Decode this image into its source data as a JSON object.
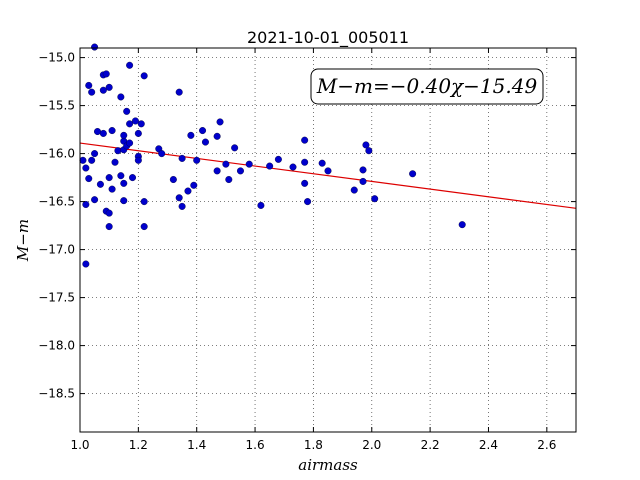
{
  "chart_data": {
    "type": "scatter",
    "title": "2021-10-01_005011",
    "xlabel": "airmass",
    "ylabel": "M−m",
    "xlim": [
      1.0,
      2.7
    ],
    "ylim": [
      -18.9,
      -14.9
    ],
    "xticks": [
      "1.0",
      "1.2",
      "1.4",
      "1.6",
      "1.8",
      "2.0",
      "2.2",
      "2.4",
      "2.6"
    ],
    "xtick_values": [
      1.0,
      1.2,
      1.4,
      1.6,
      1.8,
      2.0,
      2.2,
      2.4,
      2.6
    ],
    "yticks": [
      "−15.0",
      "−15.5",
      "−16.0",
      "−16.5",
      "−17.0",
      "−17.5",
      "−18.0",
      "−18.5"
    ],
    "ytick_values": [
      -15.0,
      -15.5,
      -16.0,
      -16.5,
      -17.0,
      -17.5,
      -18.0,
      -18.5
    ],
    "grid": true,
    "annotation": "M−m=−0.40χ−15.49",
    "point_color": "#0000cc",
    "fit_color": "#dd0000",
    "fit": {
      "slope": -0.4,
      "intercept": -15.49,
      "x_range": [
        1.0,
        2.7
      ]
    },
    "points": [
      [
        1.01,
        -16.07
      ],
      [
        1.02,
        -16.53
      ],
      [
        1.02,
        -16.15
      ],
      [
        1.02,
        -17.15
      ],
      [
        1.03,
        -16.26
      ],
      [
        1.03,
        -15.29
      ],
      [
        1.04,
        -15.36
      ],
      [
        1.04,
        -16.07
      ],
      [
        1.05,
        -14.89
      ],
      [
        1.05,
        -16.48
      ],
      [
        1.05,
        -16.0
      ],
      [
        1.06,
        -15.77
      ],
      [
        1.07,
        -16.32
      ],
      [
        1.08,
        -15.79
      ],
      [
        1.08,
        -15.34
      ],
      [
        1.08,
        -15.18
      ],
      [
        1.09,
        -15.17
      ],
      [
        1.1,
        -15.31
      ],
      [
        1.09,
        -16.6
      ],
      [
        1.1,
        -16.62
      ],
      [
        1.1,
        -16.76
      ],
      [
        1.1,
        -16.25
      ],
      [
        1.11,
        -16.37
      ],
      [
        1.11,
        -15.76
      ],
      [
        1.12,
        -16.09
      ],
      [
        1.13,
        -15.97
      ],
      [
        1.14,
        -16.23
      ],
      [
        1.14,
        -15.41
      ],
      [
        1.15,
        -15.87
      ],
      [
        1.15,
        -15.81
      ],
      [
        1.15,
        -15.96
      ],
      [
        1.15,
        -16.31
      ],
      [
        1.15,
        -16.49
      ],
      [
        1.16,
        -15.56
      ],
      [
        1.16,
        -15.92
      ],
      [
        1.17,
        -15.89
      ],
      [
        1.17,
        -15.69
      ],
      [
        1.17,
        -15.08
      ],
      [
        1.18,
        -16.25
      ],
      [
        1.19,
        -15.66
      ],
      [
        1.2,
        -15.79
      ],
      [
        1.2,
        -16.03
      ],
      [
        1.2,
        -16.07
      ],
      [
        1.21,
        -15.69
      ],
      [
        1.22,
        -16.5
      ],
      [
        1.22,
        -16.76
      ],
      [
        1.22,
        -15.19
      ],
      [
        1.27,
        -15.95
      ],
      [
        1.28,
        -16.0
      ],
      [
        1.32,
        -16.27
      ],
      [
        1.34,
        -15.36
      ],
      [
        1.34,
        -16.46
      ],
      [
        1.35,
        -16.05
      ],
      [
        1.35,
        -16.55
      ],
      [
        1.37,
        -16.39
      ],
      [
        1.38,
        -15.81
      ],
      [
        1.39,
        -16.33
      ],
      [
        1.4,
        -16.07
      ],
      [
        1.42,
        -15.76
      ],
      [
        1.43,
        -15.88
      ],
      [
        1.47,
        -15.82
      ],
      [
        1.47,
        -16.18
      ],
      [
        1.48,
        -15.67
      ],
      [
        1.5,
        -16.11
      ],
      [
        1.51,
        -16.27
      ],
      [
        1.53,
        -15.94
      ],
      [
        1.55,
        -16.18
      ],
      [
        1.58,
        -16.11
      ],
      [
        1.62,
        -16.54
      ],
      [
        1.65,
        -16.13
      ],
      [
        1.68,
        -16.06
      ],
      [
        1.73,
        -16.14
      ],
      [
        1.77,
        -15.86
      ],
      [
        1.77,
        -16.09
      ],
      [
        1.77,
        -16.31
      ],
      [
        1.78,
        -16.5
      ],
      [
        1.83,
        -16.1
      ],
      [
        1.85,
        -16.18
      ],
      [
        1.94,
        -16.38
      ],
      [
        1.97,
        -16.17
      ],
      [
        1.97,
        -16.29
      ],
      [
        1.98,
        -15.91
      ],
      [
        1.99,
        -15.97
      ],
      [
        2.01,
        -16.47
      ],
      [
        2.14,
        -16.21
      ],
      [
        2.31,
        -16.74
      ]
    ]
  }
}
